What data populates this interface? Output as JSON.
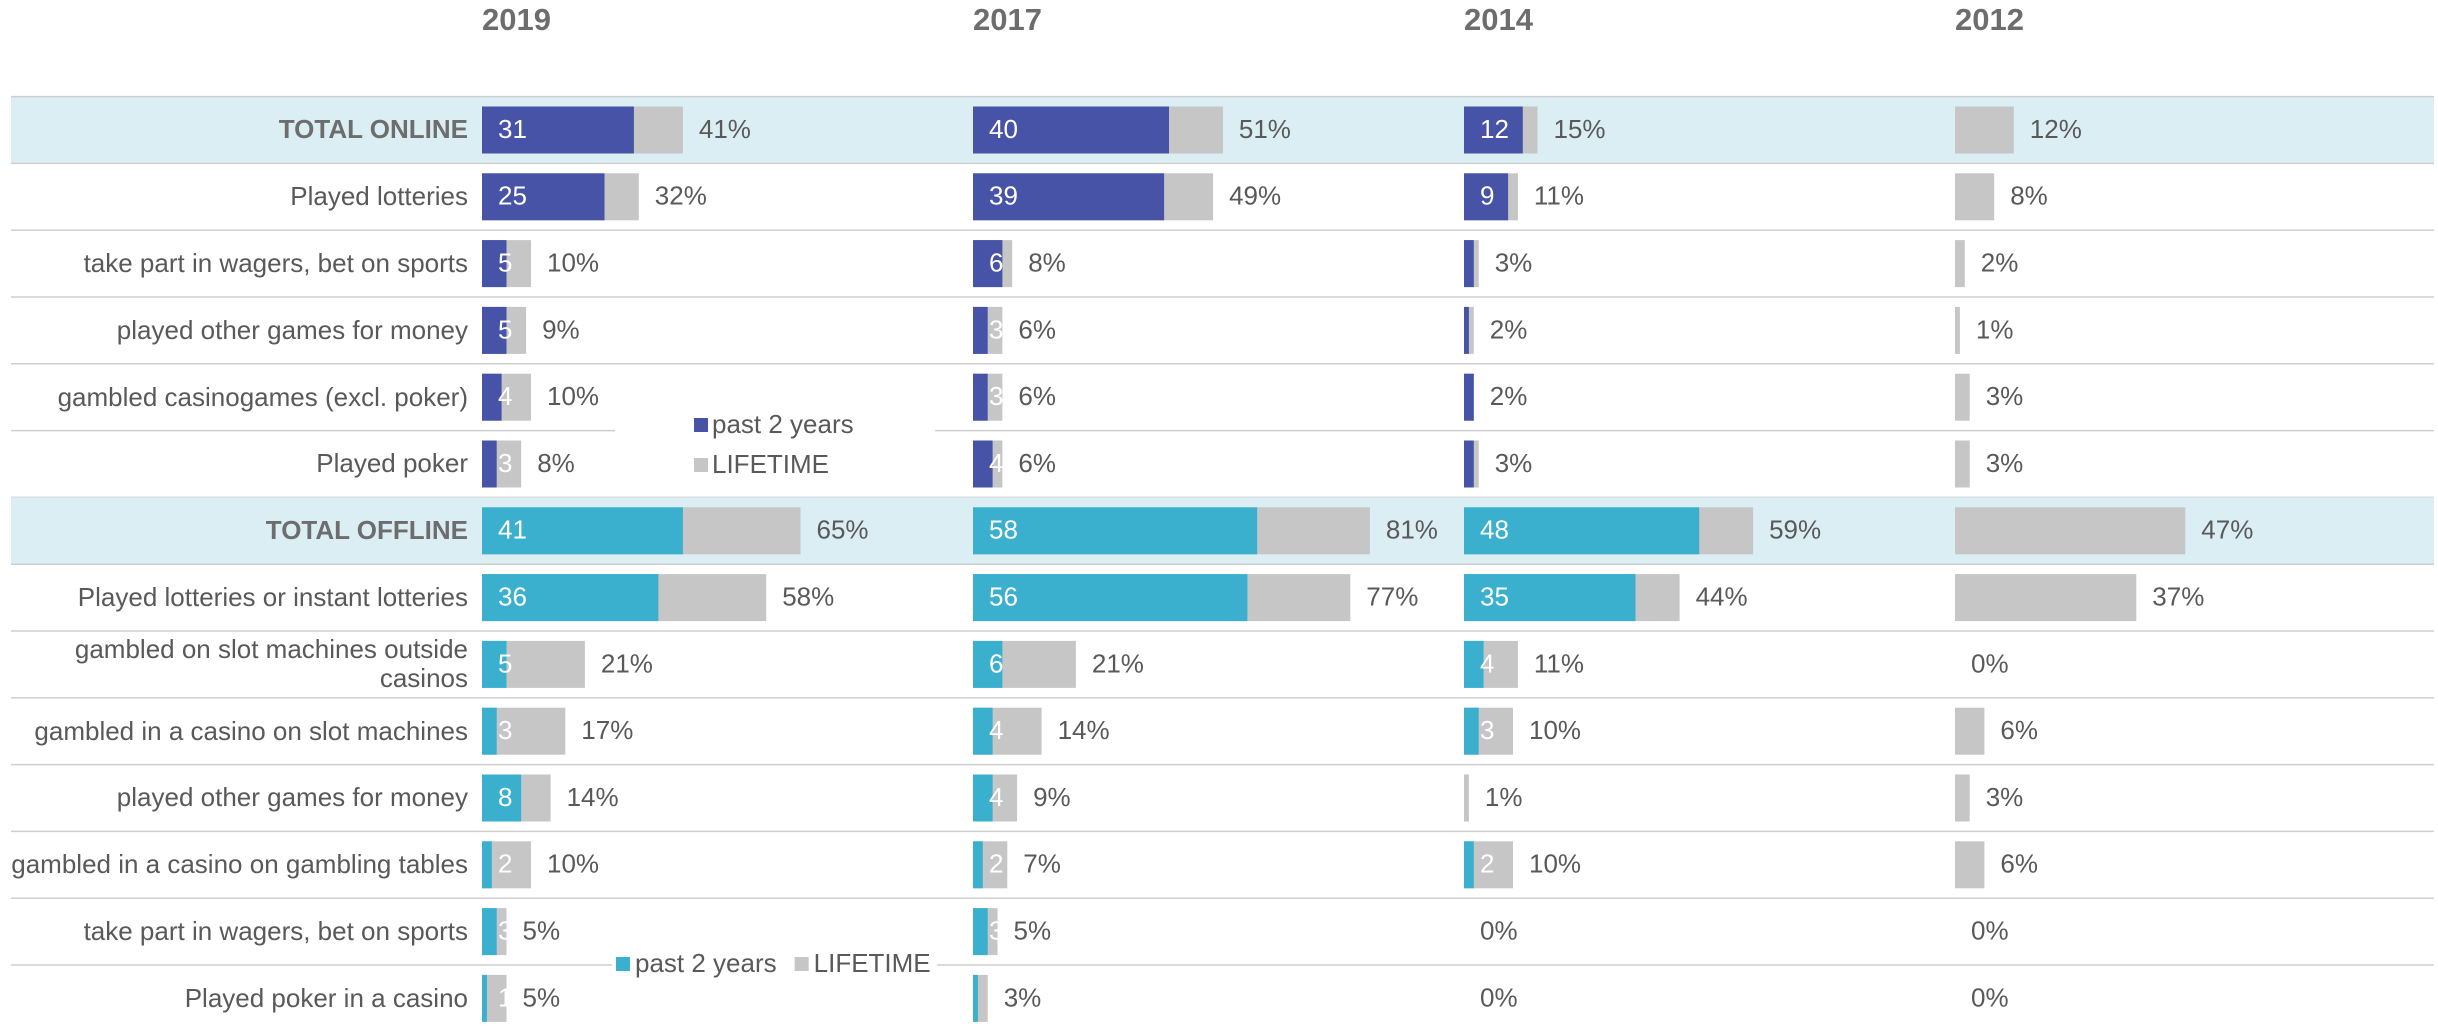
{
  "panel_titles": [
    "2019",
    "2017",
    "2014",
    "2012"
  ],
  "chart_data": [
    {
      "type": "bar",
      "categories": [
        "TOTAL ONLINE",
        "Played lotteries",
        "take part in wagers, bet on sports",
        "played other games for money",
        "gambled casinogames (excl. poker)",
        "Played poker"
      ],
      "xlim": [
        0,
        100
      ],
      "series": [
        {
          "name": "past 2 years",
          "color": "#4753a6",
          "panels": [
            {
              "values": [
                31,
                25,
                5,
                5,
                4,
                3
              ],
              "value_labels": [
                "31",
                "25",
                "5",
                "5",
                "4",
                "3"
              ]
            },
            {
              "values": [
                40,
                39,
                6,
                3,
                3,
                4
              ],
              "value_labels": [
                "40",
                "39",
                "6",
                "3",
                "3",
                "4"
              ]
            },
            {
              "values": [
                12,
                9,
                2,
                1,
                2,
                2
              ],
              "value_labels": [
                "12",
                "9",
                null,
                null,
                null,
                null
              ]
            },
            {
              "values": [
                null,
                null,
                null,
                null,
                null,
                null
              ],
              "value_labels": [
                null,
                null,
                null,
                null,
                null,
                null
              ]
            }
          ]
        },
        {
          "name": "LIFETIME",
          "color": "#c6c6c6",
          "panels": [
            {
              "values": [
                41,
                32,
                10,
                9,
                10,
                8
              ],
              "value_labels": [
                "41%",
                "32%",
                "10%",
                "9%",
                "10%",
                "8%"
              ]
            },
            {
              "values": [
                51,
                49,
                8,
                6,
                6,
                6
              ],
              "value_labels": [
                "51%",
                "49%",
                "8%",
                "6%",
                "6%",
                "6%"
              ]
            },
            {
              "values": [
                15,
                11,
                3,
                2,
                2,
                3
              ],
              "value_labels": [
                "15%",
                "11%",
                "3%",
                "2%",
                "2%",
                "3%"
              ]
            },
            {
              "values": [
                12,
                8,
                2,
                1,
                3,
                3
              ],
              "value_labels": [
                "12%",
                "8%",
                "2%",
                "1%",
                "3%",
                "3%"
              ]
            }
          ]
        }
      ]
    },
    {
      "type": "bar",
      "categories": [
        "TOTAL OFFLINE",
        "Played lotteries or instant lotteries",
        "gambled on slot machines outside casinos",
        "gambled in a casino on slot machines",
        "played other games for money",
        "gambled in a casino on gambling tables",
        "take part in wagers, bet on sports",
        "Played poker in a casino"
      ],
      "xlim": [
        0,
        100
      ],
      "series": [
        {
          "name": "past 2 years",
          "color": "#3bb0ce",
          "panels": [
            {
              "values": [
                41,
                36,
                5,
                3,
                8,
                2,
                3,
                1
              ],
              "value_labels": [
                "41",
                "36",
                "5",
                "3",
                "8",
                "2",
                "3",
                "1"
              ]
            },
            {
              "values": [
                58,
                56,
                6,
                4,
                4,
                2,
                3,
                1
              ],
              "value_labels": [
                "58",
                "56",
                "6",
                "4",
                "4",
                "2",
                "3",
                null
              ]
            },
            {
              "values": [
                48,
                35,
                4,
                3,
                0,
                2,
                0,
                0
              ],
              "value_labels": [
                "48",
                "35",
                "4",
                "3",
                null,
                "2",
                null,
                null
              ]
            },
            {
              "values": [
                null,
                null,
                null,
                null,
                null,
                null,
                null,
                null
              ],
              "value_labels": [
                null,
                null,
                null,
                null,
                null,
                null,
                null,
                null
              ]
            }
          ]
        },
        {
          "name": "LIFETIME",
          "color": "#c6c6c6",
          "panels": [
            {
              "values": [
                65,
                58,
                21,
                17,
                14,
                10,
                5,
                5
              ],
              "value_labels": [
                "65%",
                "58%",
                "21%",
                "17%",
                "14%",
                "10%",
                "5%",
                "5%"
              ]
            },
            {
              "values": [
                81,
                77,
                21,
                14,
                9,
                7,
                5,
                3
              ],
              "value_labels": [
                "81%",
                "77%",
                "21%",
                "14%",
                "9%",
                "7%",
                "5%",
                "3%"
              ]
            },
            {
              "values": [
                59,
                44,
                11,
                10,
                1,
                10,
                0,
                0
              ],
              "value_labels": [
                "59%",
                "44%",
                "11%",
                "10%",
                "1%",
                "10%",
                "0%",
                "0%"
              ]
            },
            {
              "values": [
                47,
                37,
                0,
                6,
                3,
                6,
                0,
                0
              ],
              "value_labels": [
                "47%",
                "37%",
                "0%",
                "6%",
                "3%",
                "6%",
                "0%",
                "0%"
              ]
            }
          ]
        }
      ]
    }
  ]
}
